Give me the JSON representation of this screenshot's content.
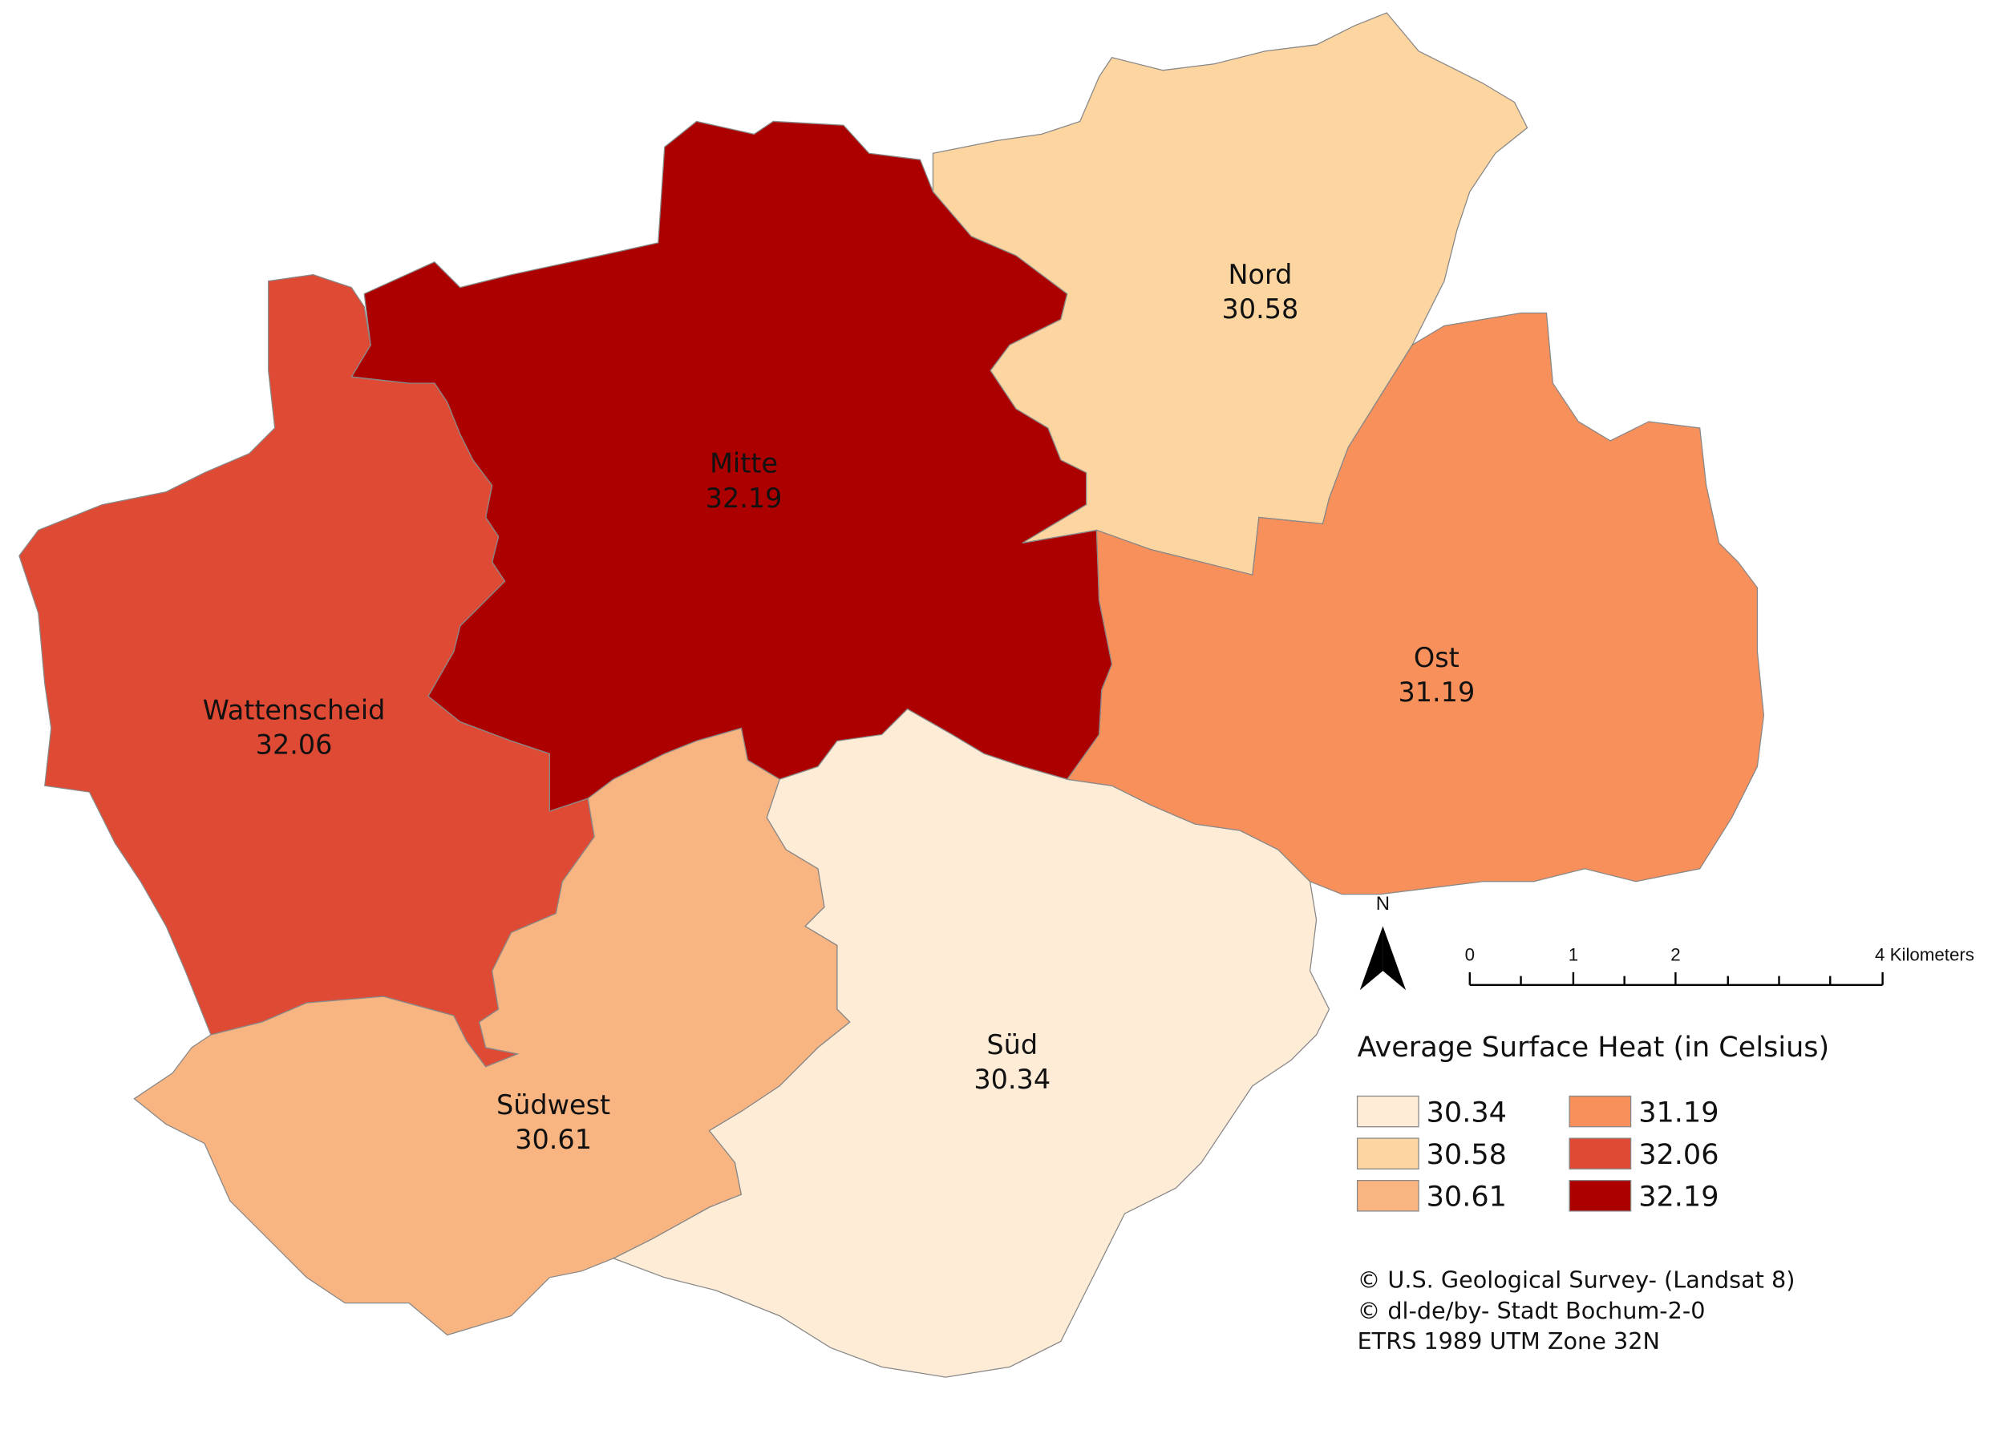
{
  "title": "Average Surface Heat (in Celsius)",
  "districts": [
    {
      "name": "Mitte",
      "value": 32.19,
      "color": "#ac0000"
    },
    {
      "name": "Wattenscheid",
      "value": 32.06,
      "color": "#df4a35"
    },
    {
      "name": "Südwest",
      "value": 30.61,
      "color": "#f8b581"
    },
    {
      "name": "Süd",
      "value": 30.34,
      "color": "#feecd7"
    },
    {
      "name": "Nord",
      "value": 30.58,
      "color": "#fdd5a0"
    },
    {
      "name": "Ost",
      "value": 31.19,
      "color": "#f8905c"
    }
  ],
  "legend": [
    {
      "value": 30.34,
      "color": "#feecd7"
    },
    {
      "value": 30.58,
      "color": "#fdd5a0"
    },
    {
      "value": 30.61,
      "color": "#f8b581"
    },
    {
      "value": 31.19,
      "color": "#f8905c"
    },
    {
      "value": 32.06,
      "color": "#df4a35"
    },
    {
      "value": 32.19,
      "color": "#ac0000"
    }
  ],
  "north": "N",
  "scale_bar": [
    "0",
    "1",
    "2",
    "4 Kilometers"
  ],
  "credits": [
    "© U.S. Geological Survey- (Landsat 8)",
    "© dl-de/by- Stadt Bochum-2-0",
    "ETRS 1989 UTM Zone 32N"
  ]
}
